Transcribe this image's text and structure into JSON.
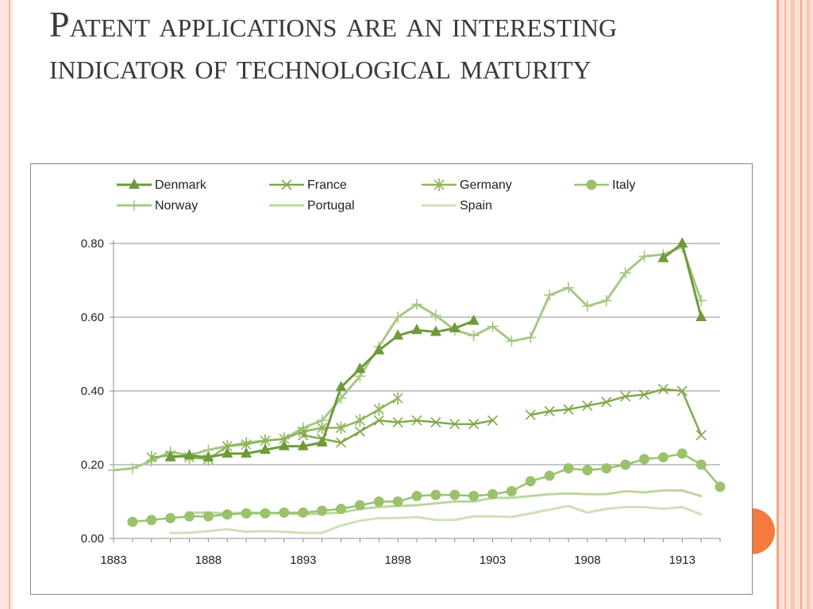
{
  "slide": {
    "title": "Patent applications are an interesting indicator of technological maturity"
  },
  "chart_data": {
    "type": "line",
    "xlabel": "",
    "ylabel": "",
    "xlim": [
      1883,
      1915
    ],
    "ylim": [
      0,
      0.8
    ],
    "x_ticks": [
      1883,
      1888,
      1893,
      1898,
      1903,
      1908,
      1913
    ],
    "y_ticks": [
      "0.00",
      "0.20",
      "0.40",
      "0.60",
      "0.80"
    ],
    "grid": "horizontal",
    "legend_position": "top",
    "series": [
      {
        "name": "Denmark",
        "color": "#6e9a3c",
        "marker": "triangle",
        "width": 3,
        "points": [
          [
            1886,
            0.22
          ],
          [
            1887,
            0.225
          ],
          [
            1888,
            0.22
          ],
          [
            1889,
            0.23
          ],
          [
            1890,
            0.23
          ],
          [
            1891,
            0.24
          ],
          [
            1892,
            0.25
          ],
          [
            1893,
            0.25
          ],
          [
            1894,
            0.26
          ],
          [
            1895,
            0.41
          ],
          [
            1896,
            0.46
          ],
          [
            1897,
            0.51
          ],
          [
            1898,
            0.55
          ],
          [
            1899,
            0.565
          ],
          [
            1900,
            0.56
          ],
          [
            1901,
            0.57
          ],
          [
            1902,
            0.59
          ],
          null,
          [
            1912,
            0.76
          ],
          [
            1913,
            0.8
          ],
          [
            1914,
            0.6
          ]
        ]
      },
      {
        "name": "France",
        "color": "#7fa84b",
        "marker": "x",
        "width": 2.5,
        "points": [
          [
            1893,
            0.28
          ],
          [
            1894,
            0.27
          ],
          [
            1895,
            0.26
          ],
          [
            1896,
            0.29
          ],
          [
            1897,
            0.32
          ],
          [
            1898,
            0.315
          ],
          [
            1899,
            0.32
          ],
          [
            1900,
            0.315
          ],
          [
            1901,
            0.31
          ],
          [
            1902,
            0.31
          ],
          [
            1903,
            0.32
          ],
          null,
          [
            1905,
            0.335
          ],
          [
            1906,
            0.345
          ],
          [
            1907,
            0.35
          ],
          [
            1908,
            0.36
          ],
          [
            1909,
            0.37
          ],
          [
            1910,
            0.385
          ],
          [
            1911,
            0.39
          ],
          [
            1912,
            0.405
          ],
          [
            1913,
            0.4
          ],
          [
            1914,
            0.28
          ]
        ]
      },
      {
        "name": "Germany",
        "color": "#8db65a",
        "marker": "asterisk",
        "width": 2.5,
        "points": [
          [
            1885,
            0.22
          ],
          [
            1886,
            0.225
          ],
          [
            1887,
            0.22
          ],
          [
            1888,
            0.215
          ],
          [
            1889,
            0.25
          ],
          [
            1890,
            0.255
          ],
          [
            1891,
            0.265
          ],
          [
            1892,
            0.27
          ],
          [
            1893,
            0.29
          ],
          [
            1894,
            0.3
          ],
          [
            1895,
            0.3
          ],
          [
            1896,
            0.32
          ],
          [
            1897,
            0.35
          ],
          [
            1898,
            0.38
          ]
        ]
      },
      {
        "name": "Italy",
        "color": "#9bc16c",
        "marker": "circle",
        "width": 2.5,
        "points": [
          [
            1884,
            0.045
          ],
          [
            1885,
            0.05
          ],
          [
            1886,
            0.055
          ],
          [
            1887,
            0.06
          ],
          [
            1888,
            0.06
          ],
          [
            1889,
            0.065
          ],
          [
            1890,
            0.068
          ],
          [
            1891,
            0.068
          ],
          [
            1892,
            0.07
          ],
          [
            1893,
            0.07
          ],
          [
            1894,
            0.075
          ],
          [
            1895,
            0.08
          ],
          [
            1896,
            0.09
          ],
          [
            1897,
            0.1
          ],
          [
            1898,
            0.1
          ],
          [
            1899,
            0.115
          ],
          [
            1900,
            0.118
          ],
          [
            1901,
            0.118
          ],
          [
            1902,
            0.115
          ],
          [
            1903,
            0.12
          ],
          [
            1904,
            0.128
          ],
          [
            1905,
            0.155
          ],
          [
            1906,
            0.17
          ],
          [
            1907,
            0.19
          ],
          [
            1908,
            0.185
          ],
          [
            1909,
            0.19
          ],
          [
            1910,
            0.2
          ],
          [
            1911,
            0.215
          ],
          [
            1912,
            0.22
          ],
          [
            1913,
            0.23
          ],
          [
            1914,
            0.2
          ],
          [
            1915,
            0.14
          ]
        ]
      },
      {
        "name": "Norway",
        "color": "#a6c885",
        "marker": "plus",
        "width": 3,
        "points": [
          [
            1883,
            0.185
          ],
          [
            1884,
            0.19
          ],
          [
            1885,
            0.21
          ],
          [
            1886,
            0.235
          ],
          [
            1887,
            0.225
          ],
          [
            1888,
            0.24
          ],
          [
            1889,
            0.25
          ],
          [
            1890,
            0.26
          ],
          [
            1891,
            0.265
          ],
          [
            1892,
            0.27
          ],
          [
            1893,
            0.3
          ],
          [
            1894,
            0.32
          ],
          [
            1895,
            0.38
          ],
          [
            1896,
            0.44
          ],
          [
            1897,
            0.52
          ],
          [
            1898,
            0.6
          ],
          [
            1899,
            0.635
          ],
          [
            1900,
            0.605
          ],
          [
            1901,
            0.565
          ],
          [
            1902,
            0.55
          ],
          [
            1903,
            0.575
          ],
          [
            1904,
            0.535
          ],
          [
            1905,
            0.545
          ],
          [
            1906,
            0.66
          ],
          [
            1907,
            0.68
          ],
          [
            1908,
            0.63
          ],
          [
            1909,
            0.645
          ],
          [
            1910,
            0.72
          ],
          [
            1911,
            0.765
          ],
          [
            1912,
            0.77
          ],
          [
            1913,
            0.79
          ],
          [
            1914,
            0.645
          ]
        ]
      },
      {
        "name": "Portugal",
        "color": "#bcd6a0",
        "marker": "none",
        "width": 3,
        "points": [
          [
            1887,
            0.07
          ],
          [
            1888,
            0.07
          ],
          [
            1889,
            0.068
          ],
          [
            1890,
            0.07
          ],
          [
            1891,
            0.07
          ],
          [
            1892,
            0.068
          ],
          [
            1893,
            0.065
          ],
          [
            1894,
            0.068
          ],
          [
            1895,
            0.07
          ],
          [
            1896,
            0.08
          ],
          [
            1897,
            0.085
          ],
          [
            1898,
            0.088
          ],
          [
            1899,
            0.09
          ],
          [
            1900,
            0.095
          ],
          [
            1901,
            0.1
          ],
          [
            1902,
            0.1
          ],
          [
            1903,
            0.11
          ],
          [
            1904,
            0.11
          ],
          [
            1905,
            0.115
          ],
          [
            1906,
            0.12
          ],
          [
            1907,
            0.122
          ],
          [
            1908,
            0.12
          ],
          [
            1909,
            0.12
          ],
          [
            1910,
            0.128
          ],
          [
            1911,
            0.125
          ],
          [
            1912,
            0.13
          ],
          [
            1913,
            0.13
          ],
          [
            1914,
            0.115
          ]
        ]
      },
      {
        "name": "Spain",
        "color": "#cfe0b8",
        "marker": "none",
        "width": 3,
        "points": [
          [
            1886,
            0.015
          ],
          [
            1887,
            0.015
          ],
          [
            1888,
            0.02
          ],
          [
            1889,
            0.025
          ],
          [
            1890,
            0.018
          ],
          [
            1891,
            0.02
          ],
          [
            1892,
            0.018
          ],
          [
            1893,
            0.015
          ],
          [
            1894,
            0.015
          ],
          [
            1895,
            0.035
          ],
          [
            1896,
            0.048
          ],
          [
            1897,
            0.055
          ],
          [
            1898,
            0.055
          ],
          [
            1899,
            0.058
          ],
          [
            1900,
            0.05
          ],
          [
            1901,
            0.05
          ],
          [
            1902,
            0.06
          ],
          [
            1903,
            0.06
          ],
          [
            1904,
            0.058
          ],
          [
            1905,
            0.068
          ],
          [
            1906,
            0.078
          ],
          [
            1907,
            0.088
          ],
          [
            1908,
            0.07
          ],
          [
            1909,
            0.08
          ],
          [
            1910,
            0.085
          ],
          [
            1911,
            0.085
          ],
          [
            1912,
            0.08
          ],
          [
            1913,
            0.085
          ],
          [
            1914,
            0.065
          ]
        ]
      }
    ]
  }
}
